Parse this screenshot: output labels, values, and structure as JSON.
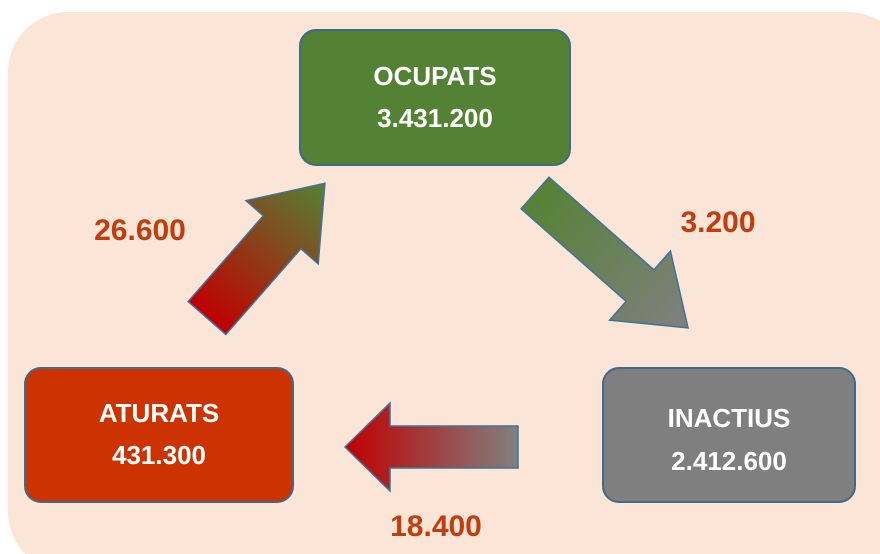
{
  "nodes": [
    {
      "label": "OCUPATS",
      "value": "3.431.200"
    },
    {
      "label": "ATURATS",
      "value": "431.300"
    },
    {
      "label": "INACTIUS",
      "value": "2.412.600"
    }
  ],
  "flows": [
    {
      "label": "26.600"
    },
    {
      "label": "3.200"
    },
    {
      "label": "18.400"
    }
  ]
}
